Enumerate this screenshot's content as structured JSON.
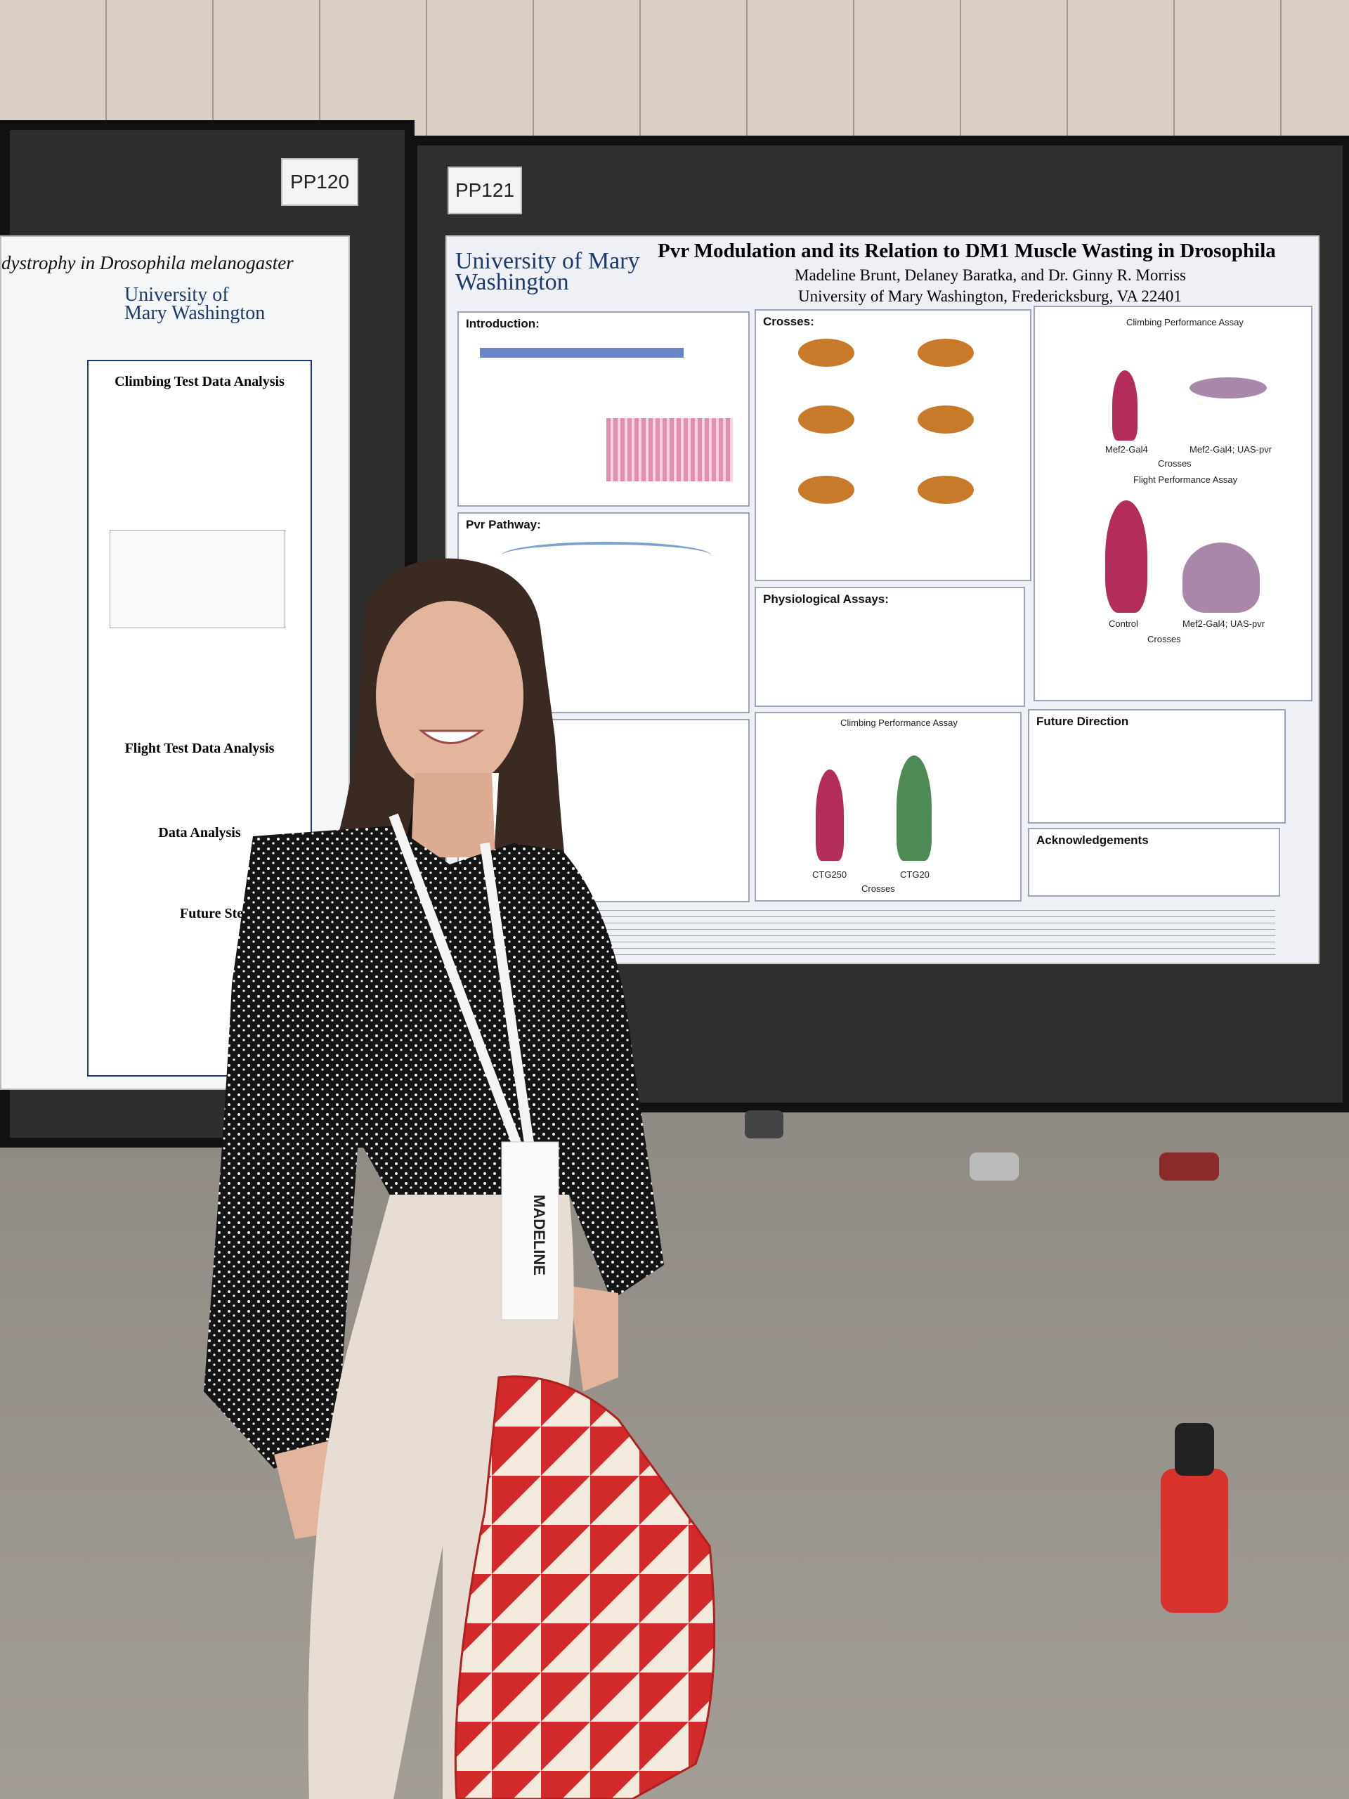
{
  "boards": [
    {
      "label": "PP120"
    },
    {
      "label": "PP121"
    }
  ],
  "left_poster": {
    "title": "dystrophy in Drosophila melanogaster",
    "logo": "University of Mary Washington",
    "sections": [
      "Climbing Test Data Analysis",
      "Flight Test Data Analysis",
      "Data Analysis",
      "Future Ste"
    ]
  },
  "right_poster": {
    "logo": "University of Mary Washington",
    "title": "Pvr Modulation and its Relation to DM1 Muscle Wasting in Drosophila",
    "authors": "Madeline Brunt, Delaney Baratka, and Dr. Ginny R. Morriss",
    "affiliation": "University of Mary Washington, Fredericksburg, VA 22401",
    "sections": {
      "introduction": "Introduction:",
      "crosses": "Crosses:",
      "pathway": "Pvr Pathway:",
      "assays": "Physiological Assays:",
      "future": "Future Direction",
      "ack": "Acknowledgements"
    },
    "charts": {
      "climbing": "Climbing Performance Assay",
      "flight": "Flight Performance Assay",
      "x_label": "Crosses",
      "climb_cats": [
        "Mef2-Gal4",
        "Mef2-Gal4; UAS-pvr"
      ],
      "flight_cats": [
        "Control",
        "Mef2-Gal4; UAS-pvr"
      ],
      "ctg_cats": [
        "CTG250",
        "CTG20"
      ]
    }
  },
  "badge": {
    "name": "MADELINE"
  }
}
